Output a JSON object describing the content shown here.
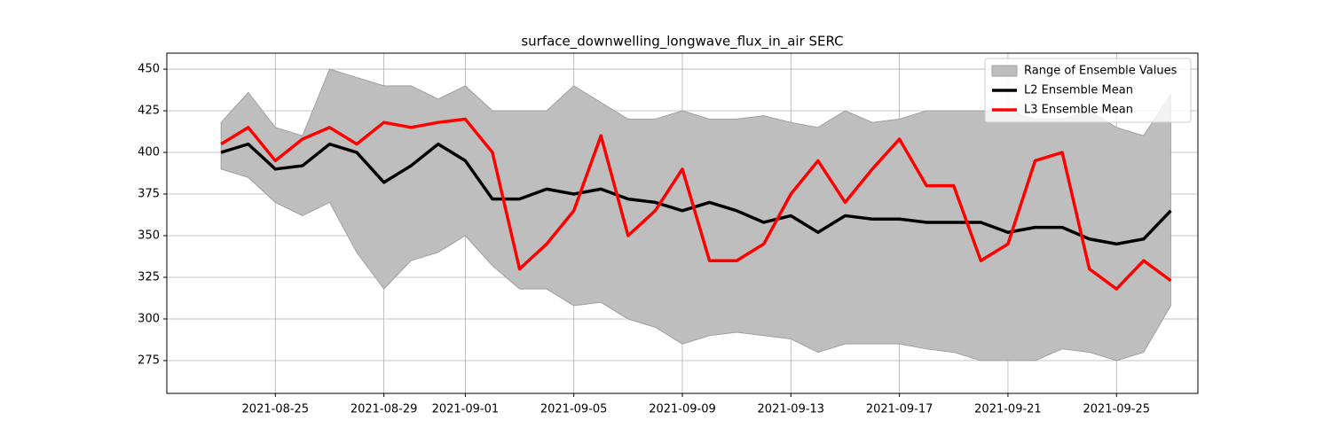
{
  "chart_data": {
    "type": "line",
    "title": "surface_downwelling_longwave_flux_in_air SERC",
    "x": [
      "2021-08-23",
      "2021-08-24",
      "2021-08-25",
      "2021-08-26",
      "2021-08-27",
      "2021-08-28",
      "2021-08-29",
      "2021-08-30",
      "2021-08-31",
      "2021-09-01",
      "2021-09-02",
      "2021-09-03",
      "2021-09-04",
      "2021-09-05",
      "2021-09-06",
      "2021-09-07",
      "2021-09-08",
      "2021-09-09",
      "2021-09-10",
      "2021-09-11",
      "2021-09-12",
      "2021-09-13",
      "2021-09-14",
      "2021-09-15",
      "2021-09-16",
      "2021-09-17",
      "2021-09-18",
      "2021-09-19",
      "2021-09-20",
      "2021-09-21",
      "2021-09-22",
      "2021-09-23",
      "2021-09-24",
      "2021-09-25",
      "2021-09-26",
      "2021-09-27"
    ],
    "series": [
      {
        "name": "Range of Ensemble Values",
        "type": "band",
        "color": "#bebebe",
        "lower": [
          390,
          385,
          370,
          362,
          370,
          340,
          318,
          335,
          340,
          350,
          332,
          318,
          318,
          308,
          310,
          300,
          295,
          285,
          290,
          292,
          290,
          288,
          280,
          285,
          285,
          285,
          282,
          280,
          275,
          275,
          275,
          282,
          280,
          275,
          280,
          308
        ],
        "upper": [
          418,
          436,
          415,
          410,
          450,
          445,
          440,
          440,
          432,
          440,
          425,
          425,
          425,
          440,
          430,
          420,
          420,
          425,
          420,
          420,
          422,
          418,
          415,
          425,
          418,
          420,
          425,
          425,
          425,
          425,
          420,
          420,
          425,
          415,
          410,
          435
        ]
      },
      {
        "name": "L2 Ensemble Mean",
        "type": "line",
        "color": "#000000",
        "values": [
          400,
          405,
          390,
          392,
          405,
          400,
          382,
          392,
          405,
          395,
          372,
          372,
          378,
          375,
          378,
          372,
          370,
          365,
          370,
          365,
          358,
          362,
          352,
          362,
          360,
          360,
          358,
          358,
          358,
          352,
          355,
          355,
          348,
          345,
          348,
          365
        ]
      },
      {
        "name": "L3 Ensemble Mean",
        "type": "line",
        "color": "#ff0000",
        "values": [
          405,
          415,
          395,
          408,
          415,
          405,
          418,
          415,
          418,
          420,
          400,
          330,
          345,
          365,
          410,
          350,
          365,
          390,
          335,
          335,
          345,
          375,
          395,
          370,
          390,
          408,
          380,
          380,
          335,
          345,
          395,
          400,
          330,
          318,
          335,
          323
        ]
      }
    ],
    "xlim": [
      "2021-08-21",
      "2021-09-28"
    ],
    "xticks": [
      "2021-08-25",
      "2021-08-29",
      "2021-09-01",
      "2021-09-05",
      "2021-09-09",
      "2021-09-13",
      "2021-09-17",
      "2021-09-21",
      "2021-09-25"
    ],
    "ylim": [
      255.3,
      459.6
    ],
    "yticks": [
      275,
      300,
      325,
      350,
      375,
      400,
      425,
      450
    ],
    "grid": true,
    "legend": "upper right"
  }
}
